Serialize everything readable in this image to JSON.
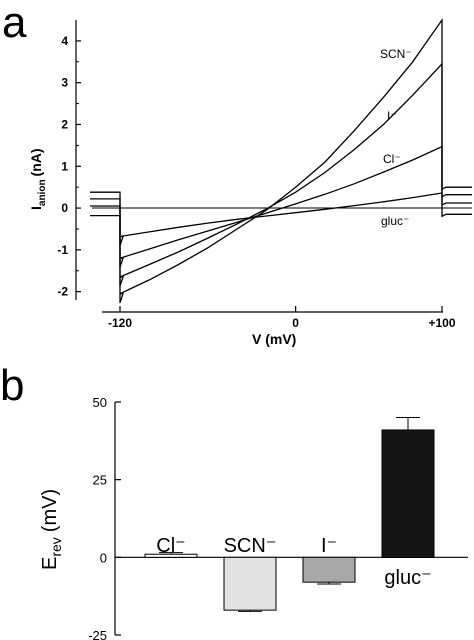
{
  "panels": {
    "a": "a",
    "b": "b"
  },
  "chart_data": [
    {
      "type": "line",
      "ylabel_main": "I",
      "ylabel_sub": "anion",
      "ylabel_unit": "(nA)",
      "xlabel": "V (mV)",
      "xlim": [
        -120,
        100
      ],
      "ylim": [
        -2.2,
        4.5
      ],
      "xticks": [
        {
          "value": -120,
          "label": "-120"
        },
        {
          "value": 0,
          "label": "0"
        },
        {
          "value": 100,
          "label": "+100"
        }
      ],
      "yticks": [
        {
          "value": 4,
          "label": "4"
        },
        {
          "value": 3,
          "label": "3"
        },
        {
          "value": 2,
          "label": "2"
        },
        {
          "value": 1,
          "label": "1"
        },
        {
          "value": 0,
          "label": "0"
        },
        {
          "value": -1,
          "label": "-1"
        },
        {
          "value": -2,
          "label": "-2"
        }
      ],
      "series": [
        {
          "name": "SCN⁻",
          "hold": 0.38,
          "tail": 0.5,
          "x": [
            -120,
            -100,
            -80,
            -60,
            -40,
            -20,
            0,
            20,
            40,
            60,
            80,
            100
          ],
          "y": [
            -2.05,
            -1.72,
            -1.35,
            -0.95,
            -0.5,
            -0.05,
            0.5,
            1.1,
            1.85,
            2.65,
            3.5,
            4.5
          ]
        },
        {
          "name": "I⁻",
          "hold": 0.22,
          "tail": 0.32,
          "x": [
            -120,
            -100,
            -80,
            -60,
            -40,
            -20,
            0,
            20,
            40,
            60,
            80,
            100
          ],
          "y": [
            -1.65,
            -1.35,
            -1.05,
            -0.72,
            -0.38,
            -0.02,
            0.38,
            0.85,
            1.4,
            2.0,
            2.7,
            3.45
          ]
        },
        {
          "name": "Cl⁻",
          "hold": 0.05,
          "tail": 0.12,
          "x": [
            -120,
            -100,
            -80,
            -60,
            -40,
            -20,
            0,
            20,
            40,
            60,
            80,
            100
          ],
          "y": [
            -1.2,
            -0.98,
            -0.76,
            -0.55,
            -0.34,
            -0.12,
            0.1,
            0.33,
            0.58,
            0.86,
            1.15,
            1.47
          ]
        },
        {
          "name": "gluc⁻",
          "hold": -0.18,
          "tail": -0.15,
          "x": [
            -120,
            -100,
            -80,
            -60,
            -40,
            -20,
            0,
            20,
            40,
            60,
            80,
            100
          ],
          "y": [
            -0.68,
            -0.57,
            -0.46,
            -0.36,
            -0.27,
            -0.19,
            -0.11,
            -0.03,
            0.06,
            0.15,
            0.25,
            0.36
          ]
        }
      ]
    },
    {
      "type": "bar",
      "ylabel_main": "E",
      "ylabel_sub": "rev",
      "ylabel_unit": "(mV)",
      "ylim": [
        -25,
        50
      ],
      "yticks": [
        {
          "value": 50,
          "label": "50"
        },
        {
          "value": 25,
          "label": "25"
        },
        {
          "value": 0,
          "label": "0"
        },
        {
          "value": -25,
          "label": "-25"
        }
      ],
      "categories": [
        "Cl⁻",
        "SCN⁻",
        "I⁻",
        "gluc⁻"
      ],
      "values": [
        1,
        -17,
        -8,
        41
      ],
      "errors": [
        0.5,
        0.4,
        0.6,
        4
      ],
      "fills": [
        "#ffffff",
        "#e2e2e2",
        "#a8a8a8",
        "#141414"
      ]
    }
  ]
}
